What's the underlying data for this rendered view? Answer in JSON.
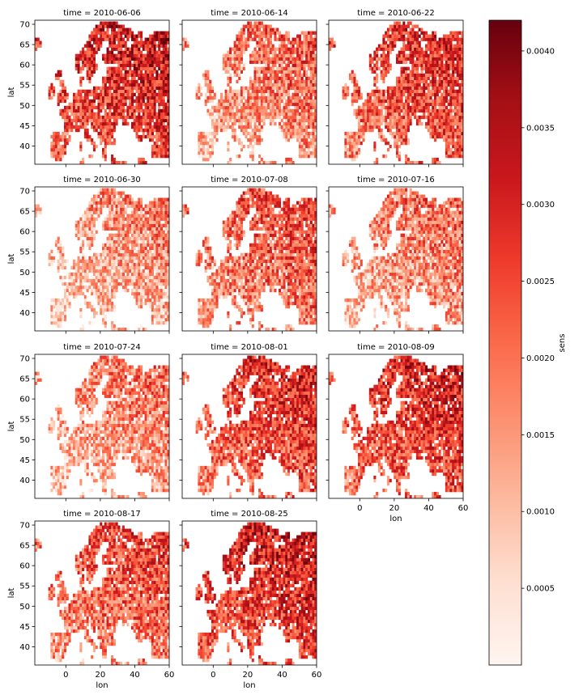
{
  "chart_data": {
    "type": "heatmap",
    "variable": "sens",
    "colormap": "Reds",
    "colorbar": {
      "label": "sens",
      "range": [
        0.0,
        0.0042
      ],
      "ticks": [
        0.0005,
        0.001,
        0.0015,
        0.002,
        0.0025,
        0.003,
        0.0035,
        0.004
      ],
      "tick_labels": [
        "0.0005",
        "0.0010",
        "0.0015",
        "0.0020",
        "0.0025",
        "0.0030",
        "0.0035",
        "0.0040"
      ]
    },
    "x_axis": {
      "label": "lon",
      "range": [
        -18,
        60
      ],
      "ticks": [
        0,
        20,
        40,
        60
      ],
      "tick_labels": [
        "0",
        "20",
        "40",
        "60"
      ]
    },
    "y_axis": {
      "label": "lat",
      "range": [
        35.5,
        71
      ],
      "ticks": [
        40,
        45,
        50,
        55,
        60,
        65,
        70
      ],
      "tick_labels": [
        "40",
        "45",
        "50",
        "55",
        "60",
        "65",
        "70"
      ]
    },
    "panels": [
      {
        "title": "time = 2010-06-06",
        "mean_level": 0.62
      },
      {
        "title": "time = 2010-06-14",
        "mean_level": 0.4
      },
      {
        "title": "time = 2010-06-22",
        "mean_level": 0.55
      },
      {
        "title": "time = 2010-06-30",
        "mean_level": 0.3
      },
      {
        "title": "time = 2010-07-08",
        "mean_level": 0.46
      },
      {
        "title": "time = 2010-07-16",
        "mean_level": 0.36
      },
      {
        "title": "time = 2010-07-24",
        "mean_level": 0.34
      },
      {
        "title": "time = 2010-08-01",
        "mean_level": 0.55
      },
      {
        "title": "time = 2010-08-09",
        "mean_level": 0.58
      },
      {
        "title": "time = 2010-08-17",
        "mean_level": 0.48
      },
      {
        "title": "time = 2010-08-25",
        "mean_level": 0.62
      }
    ]
  }
}
